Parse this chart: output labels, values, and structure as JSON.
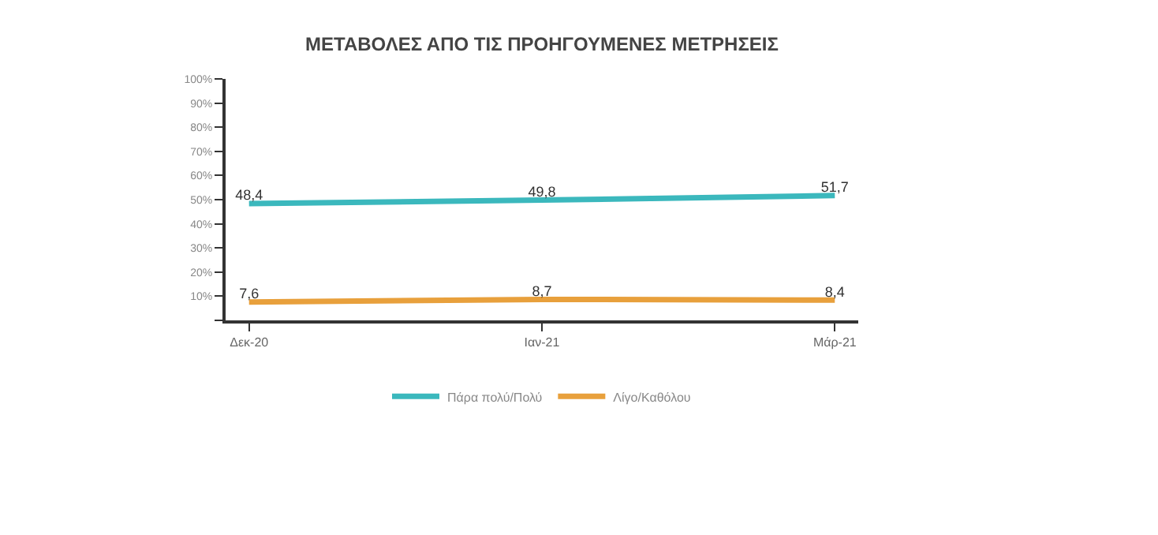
{
  "chart_data": {
    "type": "line",
    "title": "ΜΕΤΑΒΟΛΕΣ ΑΠΟ ΤΙΣ ΠΡΟΗΓΟΥΜΕΝΕΣ ΜΕΤΡΗΣΕΙΣ",
    "categories": [
      "Δεκ-20",
      "Ιαν-21",
      "Μάρ-21"
    ],
    "series": [
      {
        "name": "Πάρα πολύ/Πολύ",
        "color": "#3bb8bd",
        "values": [
          48.4,
          49.8,
          51.7
        ],
        "value_labels": [
          "48,4",
          "49,8",
          "51,7"
        ]
      },
      {
        "name": "Λίγο/Καθόλου",
        "color": "#e8a03c",
        "values": [
          7.6,
          8.7,
          8.4
        ],
        "value_labels": [
          "7,6",
          "8,7",
          "8,4"
        ]
      }
    ],
    "ylim": [
      0,
      100
    ],
    "yticks": [
      {
        "value": 0,
        "label": null
      },
      {
        "value": 10,
        "label": "10%"
      },
      {
        "value": 20,
        "label": "20%"
      },
      {
        "value": 30,
        "label": "30%"
      },
      {
        "value": 40,
        "label": "40%"
      },
      {
        "value": 50,
        "label": "50%"
      },
      {
        "value": 60,
        "label": "60%"
      },
      {
        "value": 70,
        "label": "70%"
      },
      {
        "value": 80,
        "label": "80%"
      },
      {
        "value": 90,
        "label": "90%"
      },
      {
        "value": 100,
        "label": "100%"
      }
    ],
    "legend": "bottom",
    "marker": "none",
    "line_style": "solid"
  }
}
